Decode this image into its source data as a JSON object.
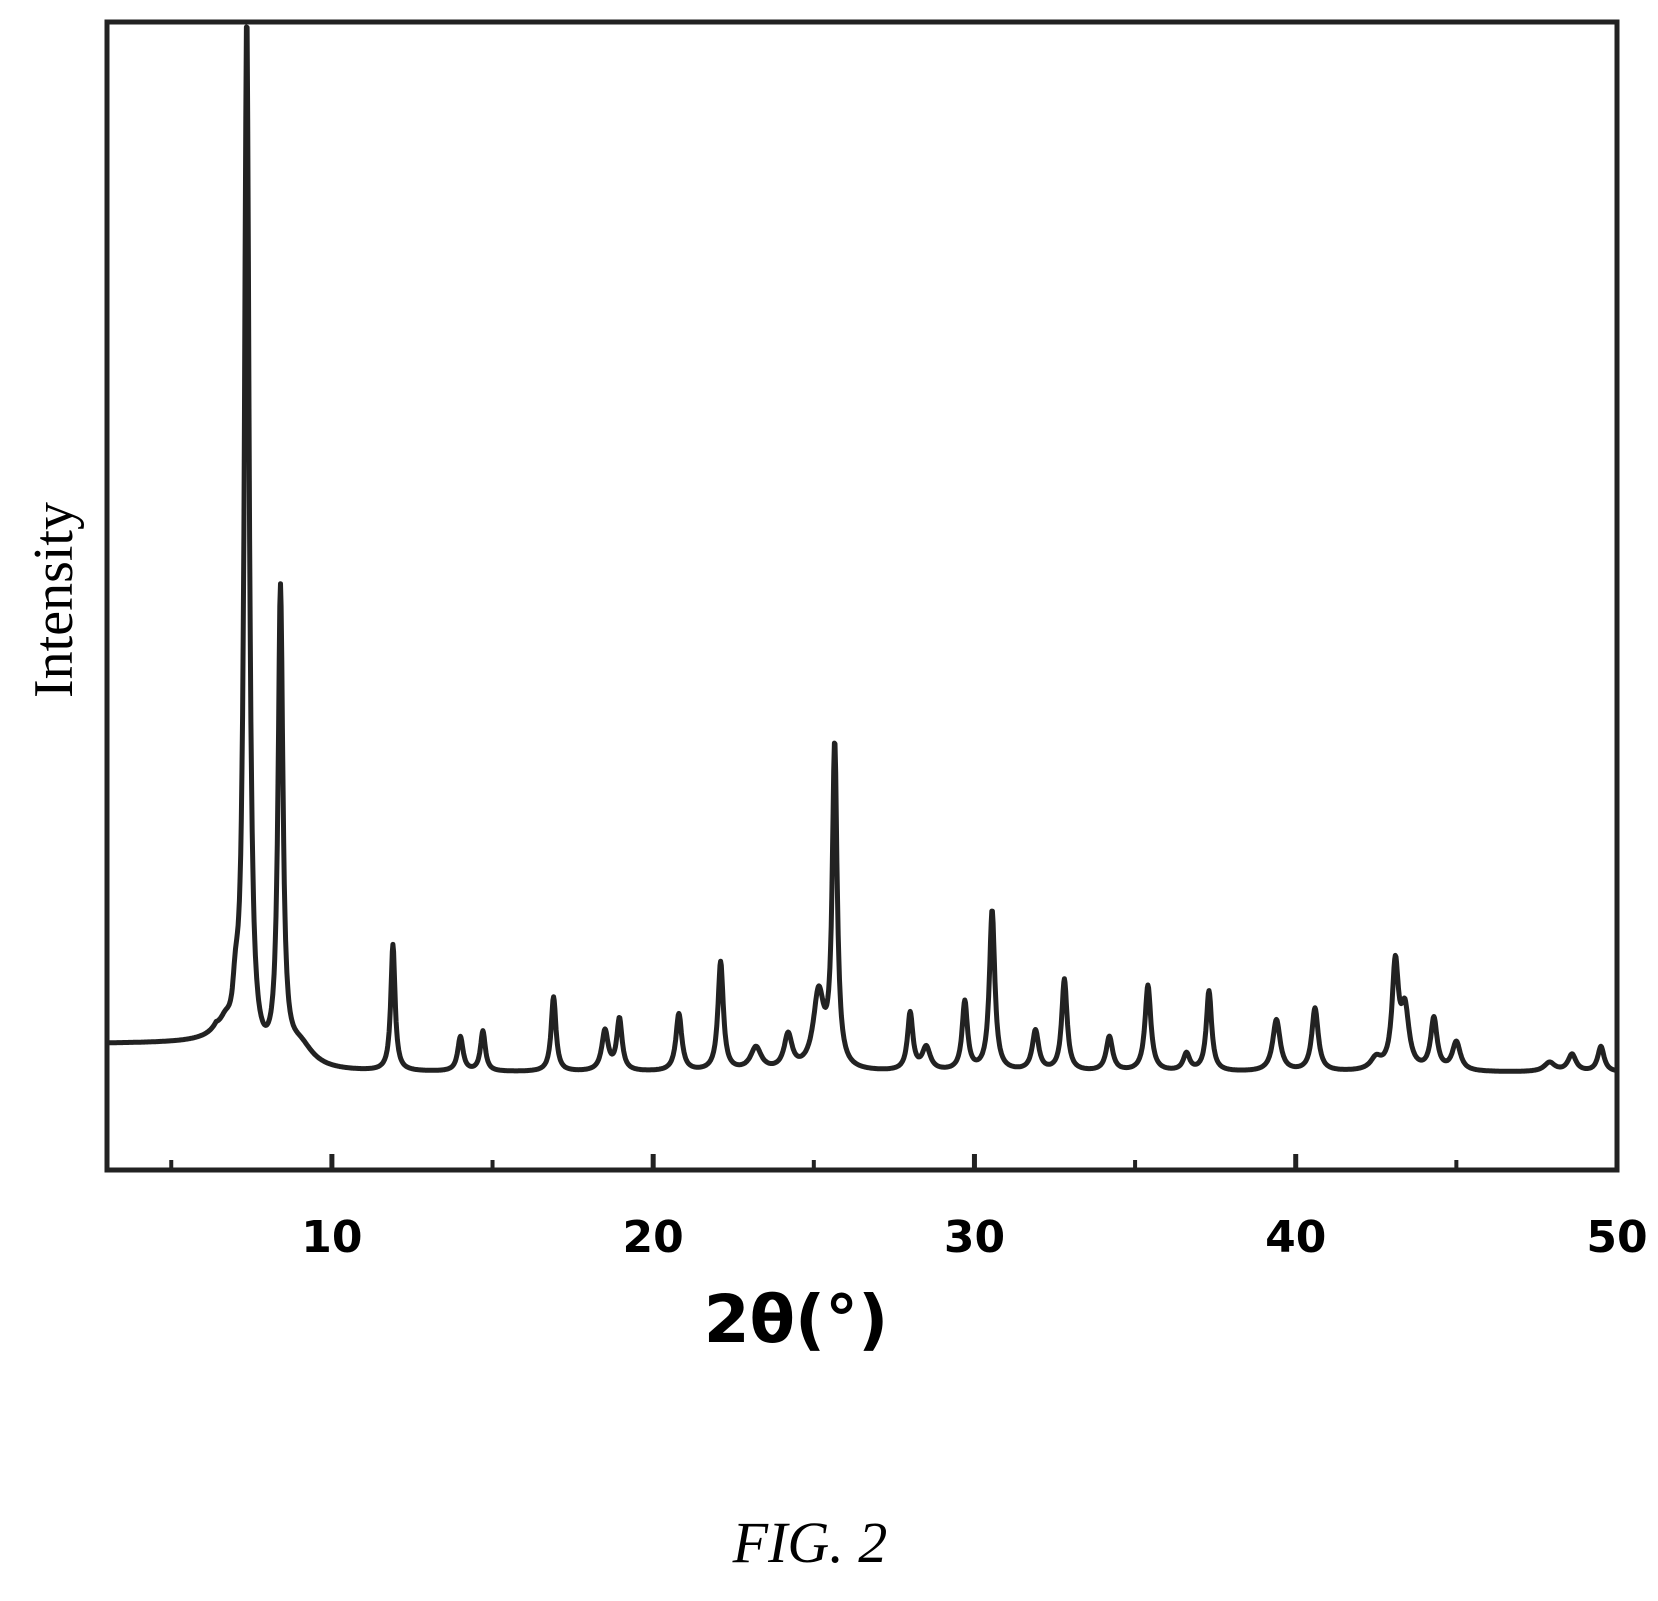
{
  "chart_data": {
    "type": "line",
    "xlabel": "2θ(°)",
    "ylabel": "Intensity",
    "xlim": [
      3,
      50
    ],
    "ylim": [
      0,
      1.0
    ],
    "x_ticks": [
      10,
      20,
      30,
      40,
      50
    ],
    "x_minor_ticks": [
      5,
      15,
      25,
      35,
      45
    ],
    "y_ticks_labeled": false,
    "grid": false,
    "legend": "none",
    "line_color": "#222222",
    "baseline": 0.085,
    "peaks": [
      {
        "x": 6.7,
        "h": 0.02,
        "w": 0.25
      },
      {
        "x": 7.0,
        "h": 0.04,
        "w": 0.12
      },
      {
        "x": 7.35,
        "h": 0.91,
        "w": 0.09
      },
      {
        "x": 8.4,
        "h": 0.41,
        "w": 0.09
      },
      {
        "x": 9.0,
        "h": 0.02,
        "w": 0.5
      },
      {
        "x": 11.9,
        "h": 0.11,
        "w": 0.08
      },
      {
        "x": 14.0,
        "h": 0.03,
        "w": 0.1
      },
      {
        "x": 14.7,
        "h": 0.035,
        "w": 0.09
      },
      {
        "x": 16.9,
        "h": 0.065,
        "w": 0.09
      },
      {
        "x": 18.5,
        "h": 0.035,
        "w": 0.12
      },
      {
        "x": 18.95,
        "h": 0.045,
        "w": 0.1
      },
      {
        "x": 20.8,
        "h": 0.05,
        "w": 0.11
      },
      {
        "x": 22.1,
        "h": 0.095,
        "w": 0.1
      },
      {
        "x": 23.2,
        "h": 0.02,
        "w": 0.2
      },
      {
        "x": 24.2,
        "h": 0.03,
        "w": 0.15
      },
      {
        "x": 25.15,
        "h": 0.065,
        "w": 0.2
      },
      {
        "x": 25.65,
        "h": 0.28,
        "w": 0.09
      },
      {
        "x": 28.0,
        "h": 0.05,
        "w": 0.1
      },
      {
        "x": 28.5,
        "h": 0.02,
        "w": 0.15
      },
      {
        "x": 29.7,
        "h": 0.06,
        "w": 0.1
      },
      {
        "x": 30.55,
        "h": 0.14,
        "w": 0.1
      },
      {
        "x": 31.9,
        "h": 0.035,
        "w": 0.12
      },
      {
        "x": 32.8,
        "h": 0.08,
        "w": 0.1
      },
      {
        "x": 34.2,
        "h": 0.03,
        "w": 0.12
      },
      {
        "x": 35.4,
        "h": 0.075,
        "w": 0.11
      },
      {
        "x": 36.6,
        "h": 0.015,
        "w": 0.12
      },
      {
        "x": 37.3,
        "h": 0.07,
        "w": 0.1
      },
      {
        "x": 39.4,
        "h": 0.045,
        "w": 0.14
      },
      {
        "x": 40.6,
        "h": 0.055,
        "w": 0.12
      },
      {
        "x": 42.5,
        "h": 0.01,
        "w": 0.2
      },
      {
        "x": 43.1,
        "h": 0.09,
        "w": 0.12
      },
      {
        "x": 43.4,
        "h": 0.05,
        "w": 0.15
      },
      {
        "x": 44.3,
        "h": 0.045,
        "w": 0.12
      },
      {
        "x": 45.0,
        "h": 0.025,
        "w": 0.15
      },
      {
        "x": 47.9,
        "h": 0.008,
        "w": 0.2
      },
      {
        "x": 48.6,
        "h": 0.015,
        "w": 0.15
      },
      {
        "x": 49.5,
        "h": 0.022,
        "w": 0.12
      }
    ],
    "step_region": {
      "x_start": 3,
      "x_end": 6.4,
      "y": 0.11
    }
  },
  "caption": "FIG. 2"
}
